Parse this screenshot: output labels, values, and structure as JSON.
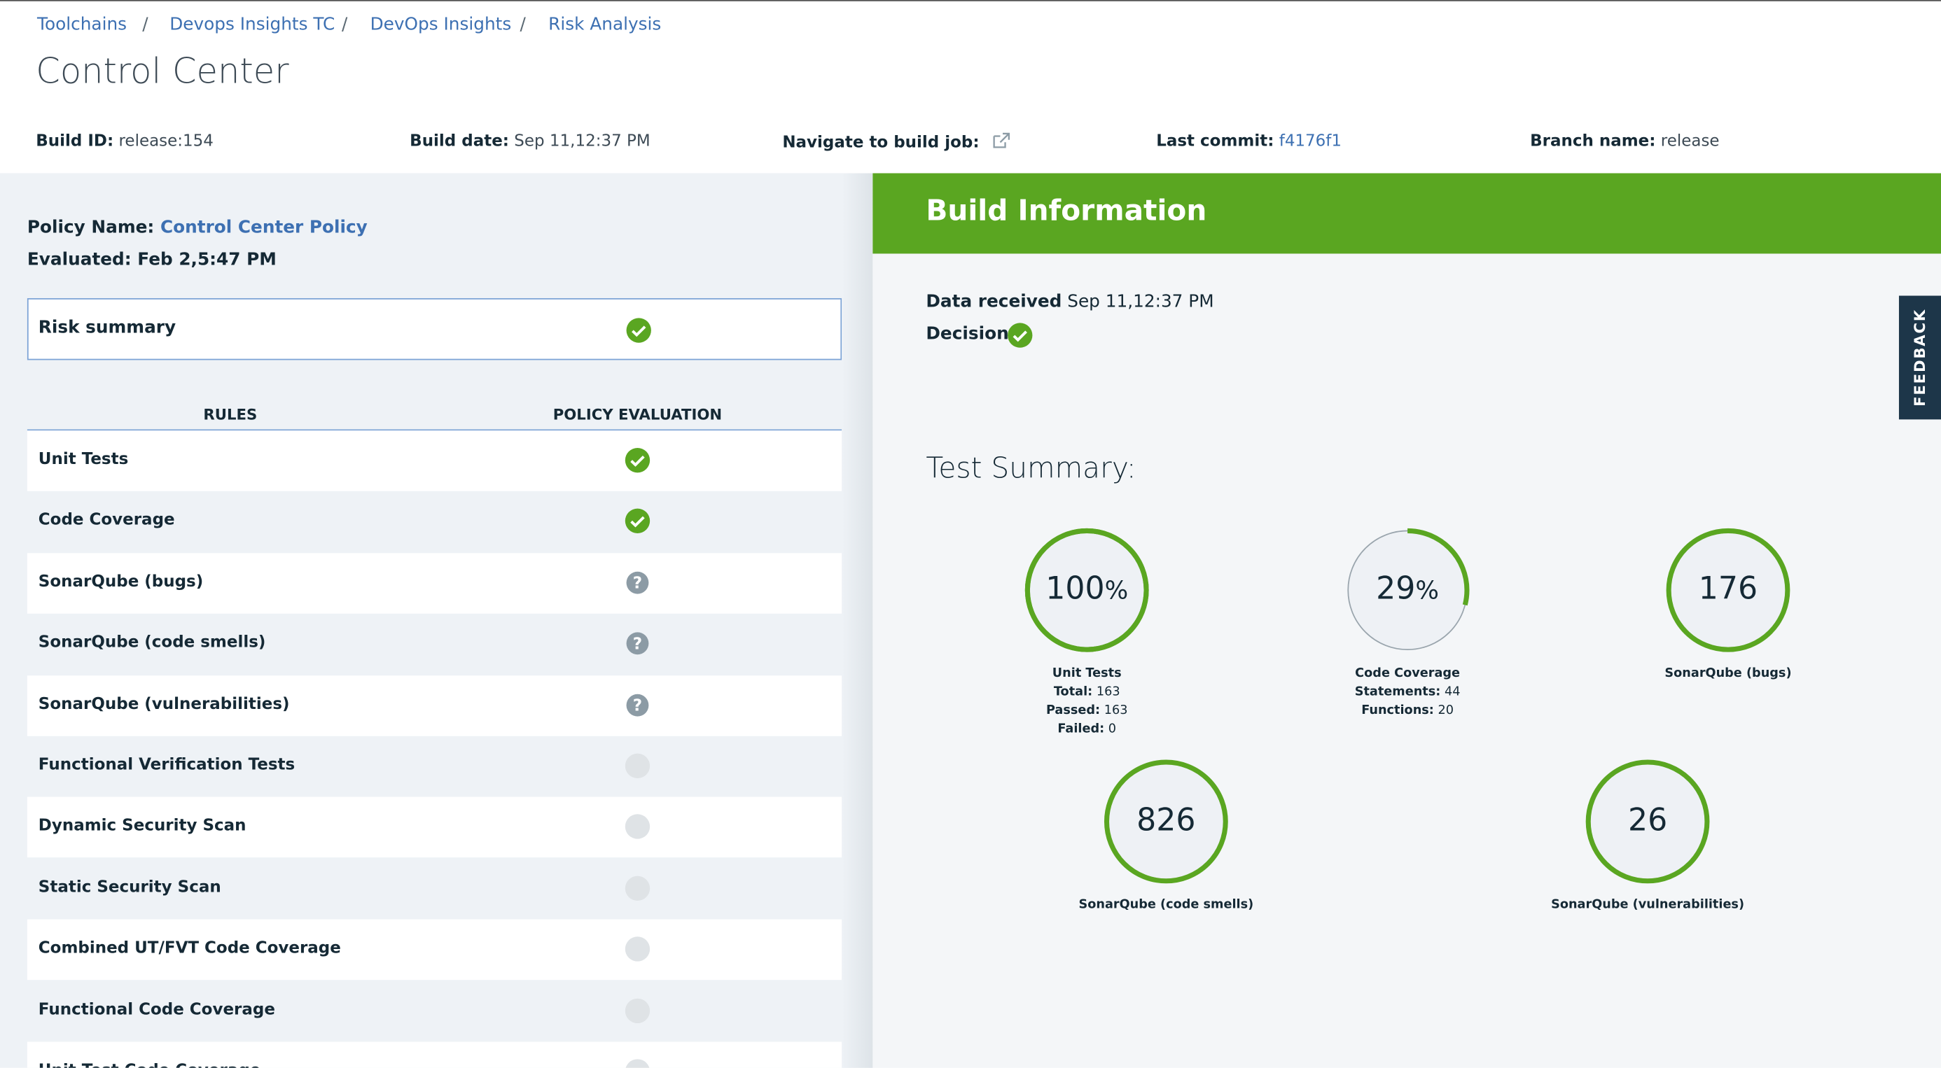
{
  "breadcrumbs": {
    "separator": "/",
    "items": [
      "Toolchains",
      "Devops Insights TC",
      "DevOps Insights",
      "Risk Analysis"
    ]
  },
  "header": {
    "title": "Control Center"
  },
  "build_meta": [
    {
      "label": "Build ID:",
      "value": "release:154"
    },
    {
      "label": "Build date:",
      "value": "Sep 11,12:37 PM"
    },
    {
      "label": "Navigate to build job:",
      "value": ""
    },
    {
      "label": "Last commit:",
      "value": "f4176f1"
    },
    {
      "label": "Branch name:",
      "value": "release"
    }
  ],
  "policy": {
    "name_label": "Policy Name:",
    "name": "Control Center Policy",
    "evaluated": "Evaluated: Feb 2,5:47 PM",
    "risk_summary": "Risk summary",
    "risk_status": "pass"
  },
  "table": {
    "headers": [
      "RULES",
      "POLICY EVALUATION"
    ],
    "rows": [
      {
        "rule": "Unit Tests",
        "status": "pass"
      },
      {
        "rule": "Code Coverage",
        "status": "pass"
      },
      {
        "rule": "SonarQube (bugs)",
        "status": "unknown"
      },
      {
        "rule": "SonarQube (code smells)",
        "status": "unknown"
      },
      {
        "rule": "SonarQube (vulnerabilities)",
        "status": "unknown"
      },
      {
        "rule": "Functional Verification Tests",
        "status": "none"
      },
      {
        "rule": "Dynamic Security Scan",
        "status": "none"
      },
      {
        "rule": "Static Security Scan",
        "status": "none"
      },
      {
        "rule": "Combined UT/FVT Code Coverage",
        "status": "none"
      },
      {
        "rule": "Functional Code Coverage",
        "status": "none"
      },
      {
        "rule": "Unit Test Code Coverage",
        "status": "none"
      }
    ]
  },
  "build_info": {
    "title": "Build Information",
    "data_received_label": "Data received",
    "data_received": "Sep 11,12:37 PM",
    "decision_label": "Decision",
    "decision": "pass",
    "test_summary": "Test Summary:",
    "metrics": [
      {
        "value": 100,
        "unit": "%",
        "label": "Unit Tests",
        "details": [
          {
            "key": "Total:",
            "value": "163"
          },
          {
            "key": "Passed:",
            "value": "163"
          },
          {
            "key": "Failed:",
            "value": "0"
          }
        ]
      },
      {
        "value": 29,
        "unit": "%",
        "label": "Code Coverage",
        "details": [
          {
            "key": "Statements:",
            "value": "44"
          },
          {
            "key": "Functions:",
            "value": "20"
          }
        ]
      },
      {
        "value": 176,
        "label": "SonarQube (bugs)",
        "details": []
      },
      {
        "value": 826,
        "label": "SonarQube (code smells)",
        "details": []
      },
      {
        "value": 26,
        "label": "SonarQube (vulnerabilities)",
        "details": []
      }
    ]
  },
  "feedback": "FEEDBACK"
}
